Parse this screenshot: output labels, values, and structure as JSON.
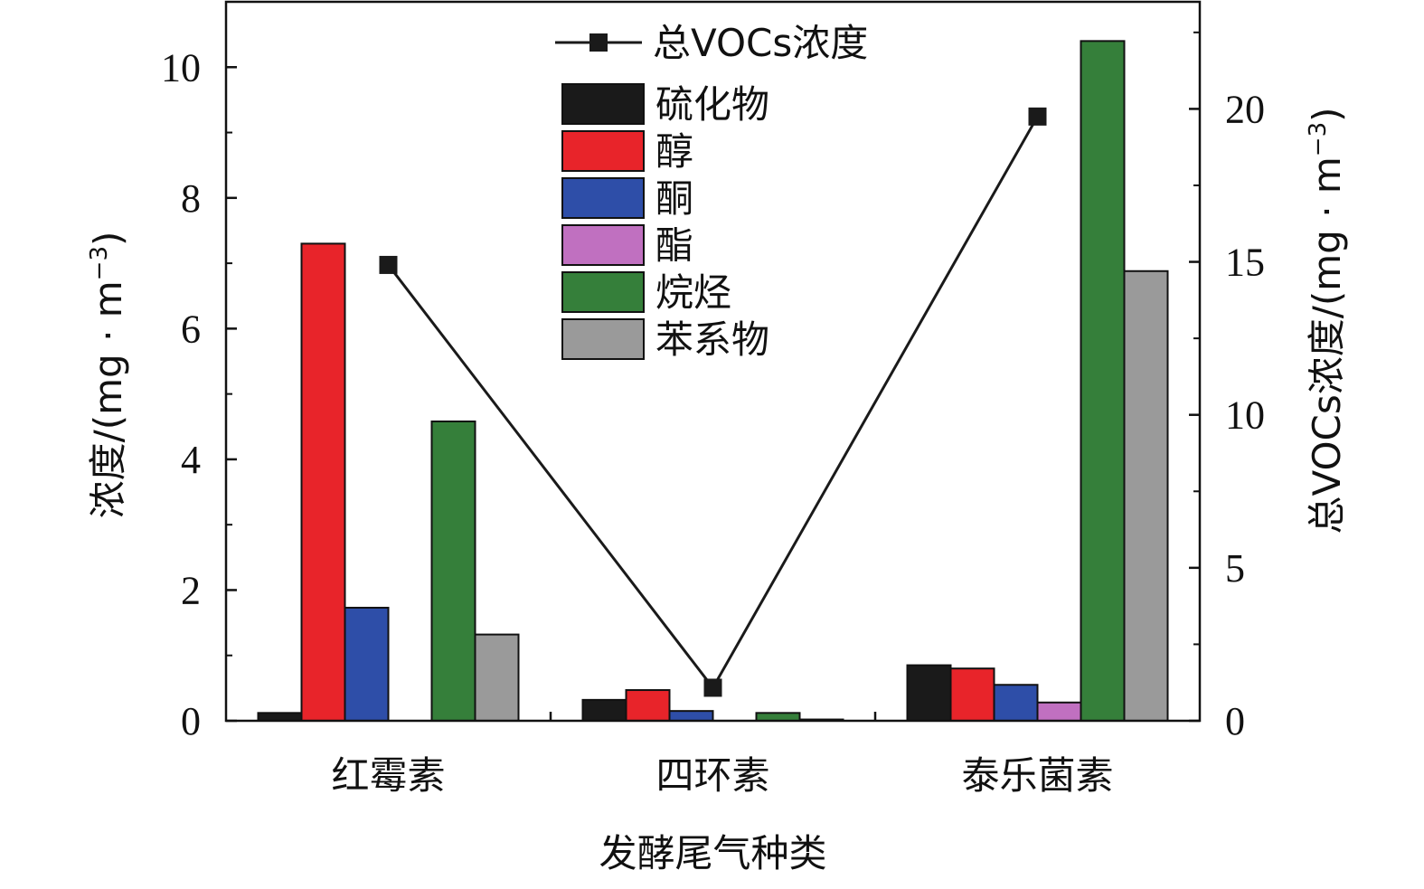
{
  "chart_data": {
    "type": "bar",
    "categories": [
      "红霉素",
      "四环素",
      "泰乐菌素"
    ],
    "xlabel": "发酵尾气种类",
    "ylabel": "浓度/(mg · m",
    "ylabel_sup": "−3",
    "ylabel_close": ")",
    "y2label": "总VOCs浓度/(mg · m",
    "y2label_sup": "−3",
    "y2label_close": ")",
    "ylim": [
      0,
      11
    ],
    "y2lim": [
      0,
      23.5
    ],
    "yticks": [
      0,
      2,
      4,
      6,
      8,
      10
    ],
    "y2ticks": [
      0,
      5,
      10,
      15,
      20
    ],
    "series": [
      {
        "name": "硫化物",
        "color": "#1a1a1a",
        "values": [
          0.12,
          0.32,
          0.85
        ]
      },
      {
        "name": "醇",
        "color": "#e8242a",
        "values": [
          7.3,
          0.47,
          0.8
        ]
      },
      {
        "name": "酮",
        "color": "#2e4ea8",
        "values": [
          1.73,
          0.15,
          0.55
        ]
      },
      {
        "name": "酯",
        "color": "#c070c0",
        "values": [
          0,
          0,
          0.28
        ]
      },
      {
        "name": "烷烃",
        "color": "#357f3a",
        "values": [
          4.58,
          0.12,
          10.4
        ]
      },
      {
        "name": "苯系物",
        "color": "#9a9a9a",
        "values": [
          1.32,
          0.02,
          6.88
        ]
      }
    ],
    "line": {
      "name": "总VOCs浓度",
      "axis": "right",
      "color": "#1a1a1a",
      "values": [
        14.9,
        1.08,
        19.75
      ]
    },
    "grid": false,
    "legend_position": "top-center"
  }
}
